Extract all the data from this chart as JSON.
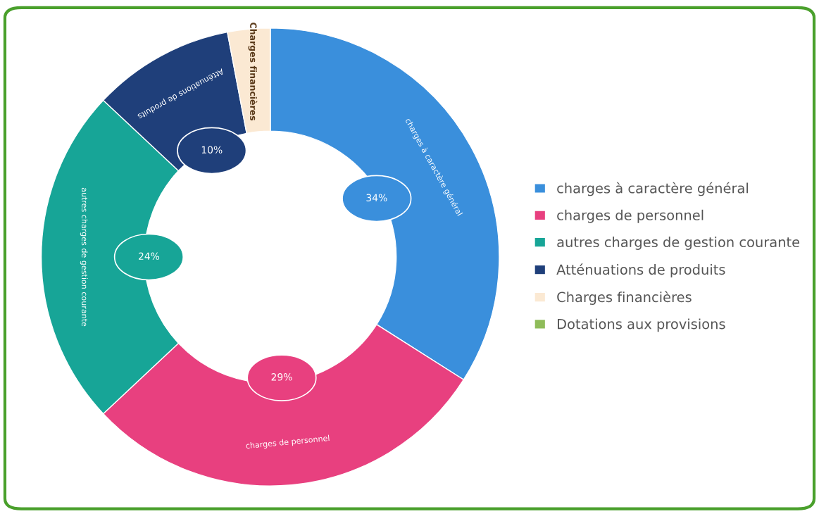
{
  "chart_data": {
    "type": "donut",
    "categories": [
      "charges à caractère général",
      "charges de personnel",
      "autres charges de gestion courante",
      "Atténuations de produits",
      "Charges financières",
      "Dotations aux provisions"
    ],
    "values": [
      34,
      29,
      24,
      10,
      3,
      0
    ],
    "value_labels": [
      "34%",
      "29%",
      "24%",
      "10%",
      null,
      null
    ],
    "colors": [
      "#3a8fdc",
      "#e8407f",
      "#17a597",
      "#1f3f7a",
      "#fbe9d3",
      "#8fbc5a"
    ],
    "legend": "right"
  }
}
